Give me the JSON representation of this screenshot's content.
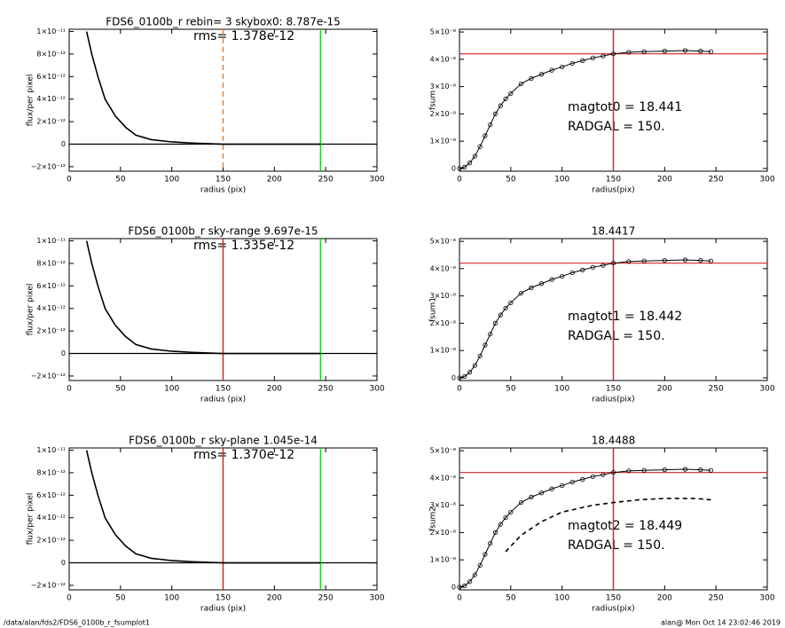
{
  "chart_data": [
    {
      "type": "line",
      "title": "FDS6_0100b_r rebin= 3    skybox0:  8.787e-15",
      "annotations": [
        "rms= 1.378e-12"
      ],
      "xlabel": "radius (pix)",
      "ylabel": "flux/per pixel",
      "xlim": [
        0,
        300
      ],
      "xticks": [
        0,
        50,
        100,
        150,
        200,
        250,
        300
      ],
      "ylim": [
        -2.4e-12,
        1.02e-11
      ],
      "yticks": [
        {
          "value": -2e-12,
          "label": "−2×10⁻¹²"
        },
        0,
        {
          "value": 2e-12,
          "label": "2×10⁻¹²"
        },
        {
          "value": 4e-12,
          "label": "4×10⁻¹²"
        },
        {
          "value": 6e-12,
          "label": "6×10⁻¹²"
        },
        {
          "value": 8e-12,
          "label": "8×10⁻¹²"
        },
        {
          "value": 1e-11,
          "label": "1×10⁻¹¹"
        }
      ],
      "series": [
        {
          "color": "#000000",
          "x": [
            17,
            22,
            28,
            35,
            45,
            55,
            65,
            80,
            100,
            120,
            150,
            200,
            245
          ],
          "values": [
            1e-11,
            8e-12,
            6e-12,
            4e-12,
            2.5e-12,
            1.5e-12,
            8e-13,
            4e-13,
            2e-13,
            1e-13,
            0,
            0,
            0
          ]
        }
      ],
      "vlines": [
        {
          "x": 150,
          "color": "#f08030",
          "dashed": true
        },
        {
          "x": 245,
          "color": "#22cc22"
        }
      ],
      "hlines": [
        {
          "y": 0,
          "color": "#000000"
        }
      ]
    },
    {
      "type": "line",
      "annotations": [
        "magtot0 =  18.441",
        "RADGAL =    150."
      ],
      "xlabel": "radius(pix)",
      "ylabel": "fsum",
      "xlim": [
        0,
        300
      ],
      "xticks": [
        0,
        50,
        100,
        150,
        200,
        250,
        300
      ],
      "ylim": [
        -1e-09,
        5.1e-08
      ],
      "yticks": [
        0,
        {
          "value": 1e-08,
          "label": "1×10⁻⁸"
        },
        {
          "value": 2e-08,
          "label": "2×10⁻⁸"
        },
        {
          "value": 3e-08,
          "label": "3×10⁻⁸"
        },
        {
          "value": 4e-08,
          "label": "4×10⁻⁸"
        },
        {
          "value": 5e-08,
          "label": "5×10⁻⁸"
        }
      ],
      "series": [
        {
          "color": "#000000",
          "marker": "circle",
          "x": [
            0,
            5,
            10,
            15,
            20,
            25,
            30,
            35,
            40,
            45,
            50,
            60,
            70,
            80,
            90,
            100,
            110,
            120,
            130,
            140,
            150,
            165,
            180,
            200,
            220,
            235,
            245
          ],
          "values": [
            0,
            5e-10,
            2e-09,
            4.5e-09,
            8e-09,
            1.2e-08,
            1.6e-08,
            2e-08,
            2.3e-08,
            2.55e-08,
            2.75e-08,
            3.1e-08,
            3.3e-08,
            3.45e-08,
            3.6e-08,
            3.72e-08,
            3.85e-08,
            3.95e-08,
            4.05e-08,
            4.12e-08,
            4.2e-08,
            4.26e-08,
            4.28e-08,
            4.3e-08,
            4.32e-08,
            4.3e-08,
            4.28e-08
          ]
        }
      ],
      "vlines": [
        {
          "x": 150,
          "color": "#dd2222"
        }
      ],
      "hlines": [
        {
          "y": 4.2e-08,
          "color": "#dd2222"
        }
      ]
    },
    {
      "type": "line",
      "title": "FDS6_0100b_r sky-range  9.697e-15",
      "annotations": [
        "rms= 1.335e-12"
      ],
      "xlabel": "radius (pix)",
      "ylabel": "flux/per pixel",
      "xlim": [
        0,
        300
      ],
      "xticks": [
        0,
        50,
        100,
        150,
        200,
        250,
        300
      ],
      "ylim": [
        -2.4e-12,
        1.02e-11
      ],
      "yticks": [
        {
          "value": -2e-12,
          "label": "−2×10⁻¹²"
        },
        0,
        {
          "value": 2e-12,
          "label": "2×10⁻¹²"
        },
        {
          "value": 4e-12,
          "label": "4×10⁻¹²"
        },
        {
          "value": 6e-12,
          "label": "6×10⁻¹²"
        },
        {
          "value": 8e-12,
          "label": "8×10⁻¹²"
        },
        {
          "value": 1e-11,
          "label": "1×10⁻¹¹"
        }
      ],
      "series": [
        {
          "color": "#000000",
          "x": [
            17,
            22,
            28,
            35,
            45,
            55,
            65,
            80,
            100,
            120,
            150,
            200,
            245
          ],
          "values": [
            1e-11,
            8e-12,
            6e-12,
            4e-12,
            2.5e-12,
            1.5e-12,
            8e-13,
            4e-13,
            2e-13,
            1e-13,
            0,
            0,
            0
          ]
        }
      ],
      "vlines": [
        {
          "x": 150,
          "color": "#dd2222"
        },
        {
          "x": 245,
          "color": "#22cc22"
        }
      ],
      "hlines": [
        {
          "y": 0,
          "color": "#000000"
        }
      ]
    },
    {
      "type": "line",
      "title": "18.4417",
      "annotations": [
        "magtot1 =  18.442",
        "RADGAL =    150."
      ],
      "xlabel": "radius(pix)",
      "ylabel": "fsum1",
      "xlim": [
        0,
        300
      ],
      "xticks": [
        0,
        50,
        100,
        150,
        200,
        250,
        300
      ],
      "ylim": [
        -1e-09,
        5.1e-08
      ],
      "yticks": [
        0,
        {
          "value": 1e-08,
          "label": "1×10⁻⁸"
        },
        {
          "value": 2e-08,
          "label": "2×10⁻⁸"
        },
        {
          "value": 3e-08,
          "label": "3×10⁻⁸"
        },
        {
          "value": 4e-08,
          "label": "4×10⁻⁸"
        },
        {
          "value": 5e-08,
          "label": "5×10⁻⁸"
        }
      ],
      "series": [
        {
          "color": "#000000",
          "marker": "circle",
          "x": [
            0,
            5,
            10,
            15,
            20,
            25,
            30,
            35,
            40,
            45,
            50,
            60,
            70,
            80,
            90,
            100,
            110,
            120,
            130,
            140,
            150,
            165,
            180,
            200,
            220,
            235,
            245
          ],
          "values": [
            0,
            5e-10,
            2e-09,
            4.5e-09,
            8e-09,
            1.2e-08,
            1.6e-08,
            2e-08,
            2.3e-08,
            2.55e-08,
            2.75e-08,
            3.1e-08,
            3.3e-08,
            3.45e-08,
            3.6e-08,
            3.72e-08,
            3.85e-08,
            3.95e-08,
            4.05e-08,
            4.12e-08,
            4.2e-08,
            4.26e-08,
            4.28e-08,
            4.3e-08,
            4.32e-08,
            4.3e-08,
            4.28e-08
          ]
        }
      ],
      "vlines": [
        {
          "x": 150,
          "color": "#dd2222"
        }
      ],
      "hlines": [
        {
          "y": 4.2e-08,
          "color": "#dd2222"
        }
      ]
    },
    {
      "type": "line",
      "title": "FDS6_0100b_r sky-plane  1.045e-14",
      "annotations": [
        "rms= 1.370e-12"
      ],
      "xlabel": "radius (pix)",
      "ylabel": "flux/per pixel",
      "xlim": [
        0,
        300
      ],
      "xticks": [
        0,
        50,
        100,
        150,
        200,
        250,
        300
      ],
      "ylim": [
        -2.4e-12,
        1.02e-11
      ],
      "yticks": [
        {
          "value": -2e-12,
          "label": "−2×10⁻¹²"
        },
        0,
        {
          "value": 2e-12,
          "label": "2×10⁻¹²"
        },
        {
          "value": 4e-12,
          "label": "4×10⁻¹²"
        },
        {
          "value": 6e-12,
          "label": "6×10⁻¹²"
        },
        {
          "value": 8e-12,
          "label": "8×10⁻¹²"
        },
        {
          "value": 1e-11,
          "label": "1×10⁻¹¹"
        }
      ],
      "series": [
        {
          "color": "#000000",
          "x": [
            17,
            22,
            28,
            35,
            45,
            55,
            65,
            80,
            100,
            120,
            150,
            200,
            245
          ],
          "values": [
            1e-11,
            8e-12,
            6e-12,
            4e-12,
            2.5e-12,
            1.5e-12,
            8e-13,
            4e-13,
            2e-13,
            1e-13,
            0,
            0,
            0
          ]
        }
      ],
      "vlines": [
        {
          "x": 150,
          "color": "#dd2222"
        },
        {
          "x": 245,
          "color": "#22cc22"
        }
      ],
      "hlines": [
        {
          "y": 0,
          "color": "#000000"
        }
      ]
    },
    {
      "type": "line",
      "title": "18.4488",
      "annotations": [
        "magtot2 =  18.449",
        "RADGAL =    150."
      ],
      "xlabel": "radius(pix)",
      "ylabel": "fsum2",
      "xlim": [
        0,
        300
      ],
      "xticks": [
        0,
        50,
        100,
        150,
        200,
        250,
        300
      ],
      "ylim": [
        -1e-09,
        5.1e-08
      ],
      "yticks": [
        0,
        {
          "value": 1e-08,
          "label": "1×10⁻⁸"
        },
        {
          "value": 2e-08,
          "label": "2×10⁻⁸"
        },
        {
          "value": 3e-08,
          "label": "3×10⁻⁸"
        },
        {
          "value": 4e-08,
          "label": "4×10⁻⁸"
        },
        {
          "value": 5e-08,
          "label": "5×10⁻⁸"
        }
      ],
      "series": [
        {
          "color": "#000000",
          "marker": "circle",
          "x": [
            0,
            5,
            10,
            15,
            20,
            25,
            30,
            35,
            40,
            45,
            50,
            60,
            70,
            80,
            90,
            100,
            110,
            120,
            130,
            140,
            150,
            165,
            180,
            200,
            220,
            235,
            245
          ],
          "values": [
            0,
            5e-10,
            2e-09,
            4.5e-09,
            8e-09,
            1.2e-08,
            1.6e-08,
            2e-08,
            2.3e-08,
            2.55e-08,
            2.75e-08,
            3.1e-08,
            3.3e-08,
            3.45e-08,
            3.6e-08,
            3.72e-08,
            3.85e-08,
            3.95e-08,
            4.05e-08,
            4.12e-08,
            4.2e-08,
            4.26e-08,
            4.28e-08,
            4.3e-08,
            4.32e-08,
            4.3e-08,
            4.28e-08
          ]
        },
        {
          "color": "#000000",
          "dashed": true,
          "x": [
            45,
            60,
            80,
            100,
            130,
            150,
            175,
            200,
            230,
            245
          ],
          "values": [
            1.3e-08,
            1.9e-08,
            2.4e-08,
            2.75e-08,
            3e-08,
            3.1e-08,
            3.2e-08,
            3.25e-08,
            3.25e-08,
            3.2e-08
          ]
        }
      ],
      "vlines": [
        {
          "x": 150,
          "color": "#dd2222"
        }
      ],
      "hlines": [
        {
          "y": 4.2e-08,
          "color": "#dd2222"
        }
      ]
    }
  ],
  "footer": {
    "left": "/data/alan/fds2/FDS6_0100b_r_fsumplot1",
    "right": "alan@  Mon Oct 14 23:02:46 2019"
  }
}
